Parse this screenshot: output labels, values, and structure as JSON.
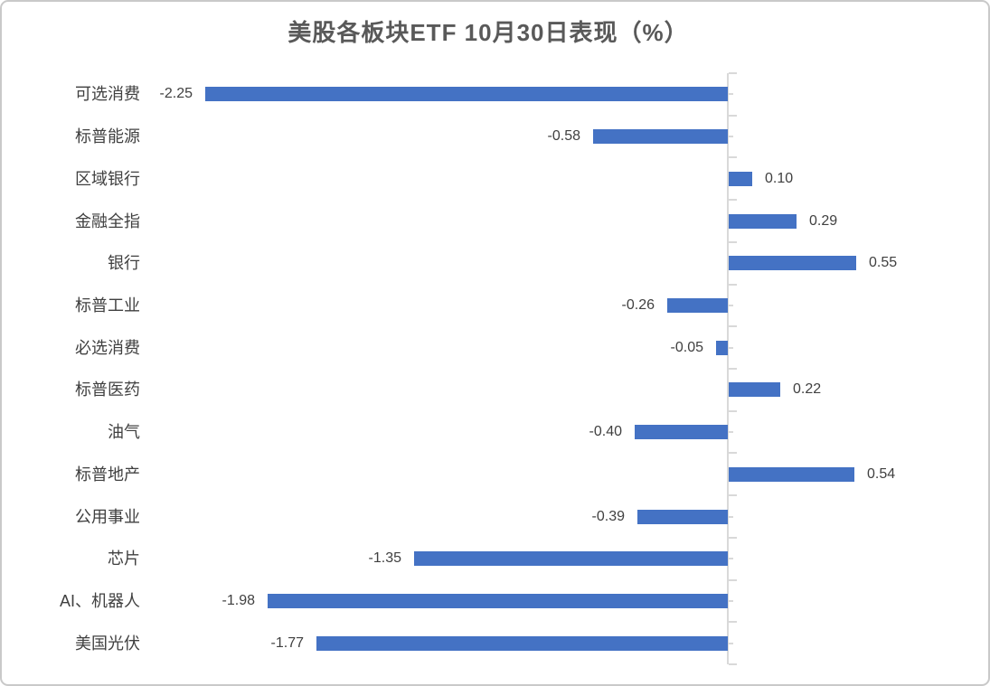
{
  "title": "美股各板块ETF 10月30日表现（%）",
  "chart_data": {
    "type": "bar",
    "orientation": "horizontal",
    "title": "美股各板块ETF 10月30日表现（%）",
    "categories": [
      "可选消费",
      "标普能源",
      "区域银行",
      "金融全指",
      "银行",
      "标普工业",
      "必选消费",
      "标普医药",
      "油气",
      "标普地产",
      "公用事业",
      "芯片",
      "AI、机器人",
      "美国光伏"
    ],
    "values": [
      -2.25,
      -0.58,
      0.1,
      0.29,
      0.55,
      -0.26,
      -0.05,
      0.22,
      -0.4,
      0.54,
      -0.39,
      -1.35,
      -1.98,
      -1.77
    ],
    "value_labels": [
      "-2.25",
      "-0.58",
      "0.10",
      "0.29",
      "0.55",
      "-0.26",
      "-0.05",
      "0.22",
      "-0.40",
      "0.54",
      "-0.39",
      "-1.35",
      "-1.98",
      "-1.77"
    ],
    "xlabel": "",
    "ylabel": "",
    "xlim": [
      -2.9,
      1.05
    ],
    "grid": false,
    "legend": false,
    "data_labels_position": "outside_end",
    "value_axis_labels_visible": false,
    "colors": {
      "bar": "#4472C4",
      "axis": "#D9D9D9",
      "value_label": "#404040",
      "category_label": "#404040",
      "title": "#595959",
      "background": "#FFFFFF",
      "frame_border": "#C9C9C9"
    }
  }
}
